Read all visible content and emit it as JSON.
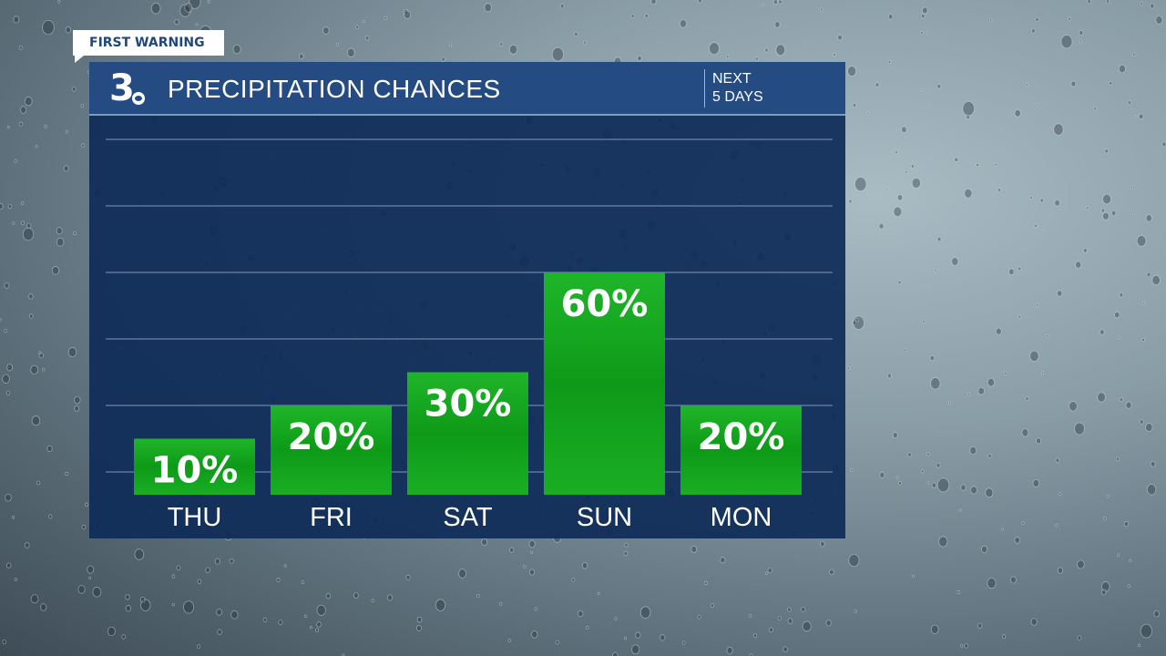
{
  "tag": "FIRST WARNING",
  "header": {
    "logo": "3",
    "title": "PRECIPITATION CHANCES",
    "subtitle_line1": "NEXT",
    "subtitle_line2": "5 DAYS"
  },
  "colors": {
    "header": "#244c82",
    "plot": "#0e2c58",
    "bar": "#16a51f"
  },
  "chart_data": {
    "type": "bar",
    "title": "PRECIPITATION CHANCES",
    "categories": [
      "THU",
      "FRI",
      "SAT",
      "SUN",
      "MON"
    ],
    "values": [
      10,
      20,
      30,
      60,
      20
    ],
    "data_labels": [
      "10%",
      "20%",
      "30%",
      "60%",
      "20%"
    ],
    "ylim": [
      0,
      100
    ],
    "grid": true,
    "unit": "%"
  }
}
